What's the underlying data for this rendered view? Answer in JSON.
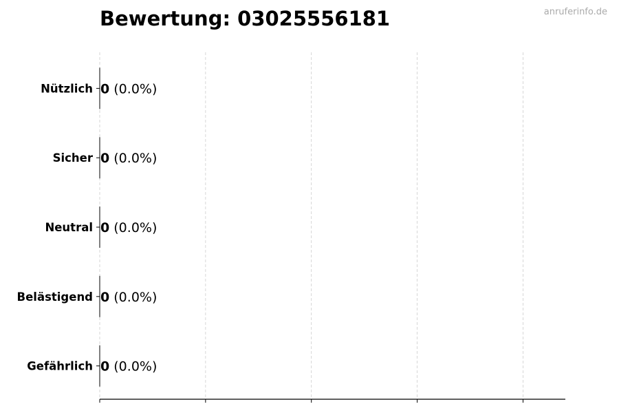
{
  "header": {
    "title": "Bewertung: 03025556181",
    "watermark": "anruferinfo.de"
  },
  "chart_data": {
    "type": "bar",
    "orientation": "horizontal",
    "title": "Bewertung: 03025556181",
    "categories": [
      "Nützlich",
      "Sicher",
      "Neutral",
      "Belästigend",
      "Gefährlich"
    ],
    "values": [
      0,
      0,
      0,
      0,
      0
    ],
    "data_labels": [
      {
        "count": "0",
        "percent": "(0.0%)"
      },
      {
        "count": "0",
        "percent": "(0.0%)"
      },
      {
        "count": "0",
        "percent": "(0.0%)"
      },
      {
        "count": "0",
        "percent": "(0.0%)"
      },
      {
        "count": "0",
        "percent": "(0.0%)"
      }
    ],
    "xlabel": "",
    "ylabel": "",
    "xlim": [
      0,
      4.4
    ],
    "xticks": [
      0,
      1,
      2,
      3,
      4
    ],
    "xtick_labels_shown": false,
    "grid": "x, dashed",
    "colors": {
      "bar_edge": "#000000",
      "grid": "#cccccc",
      "watermark": "#aaaaaa"
    }
  }
}
